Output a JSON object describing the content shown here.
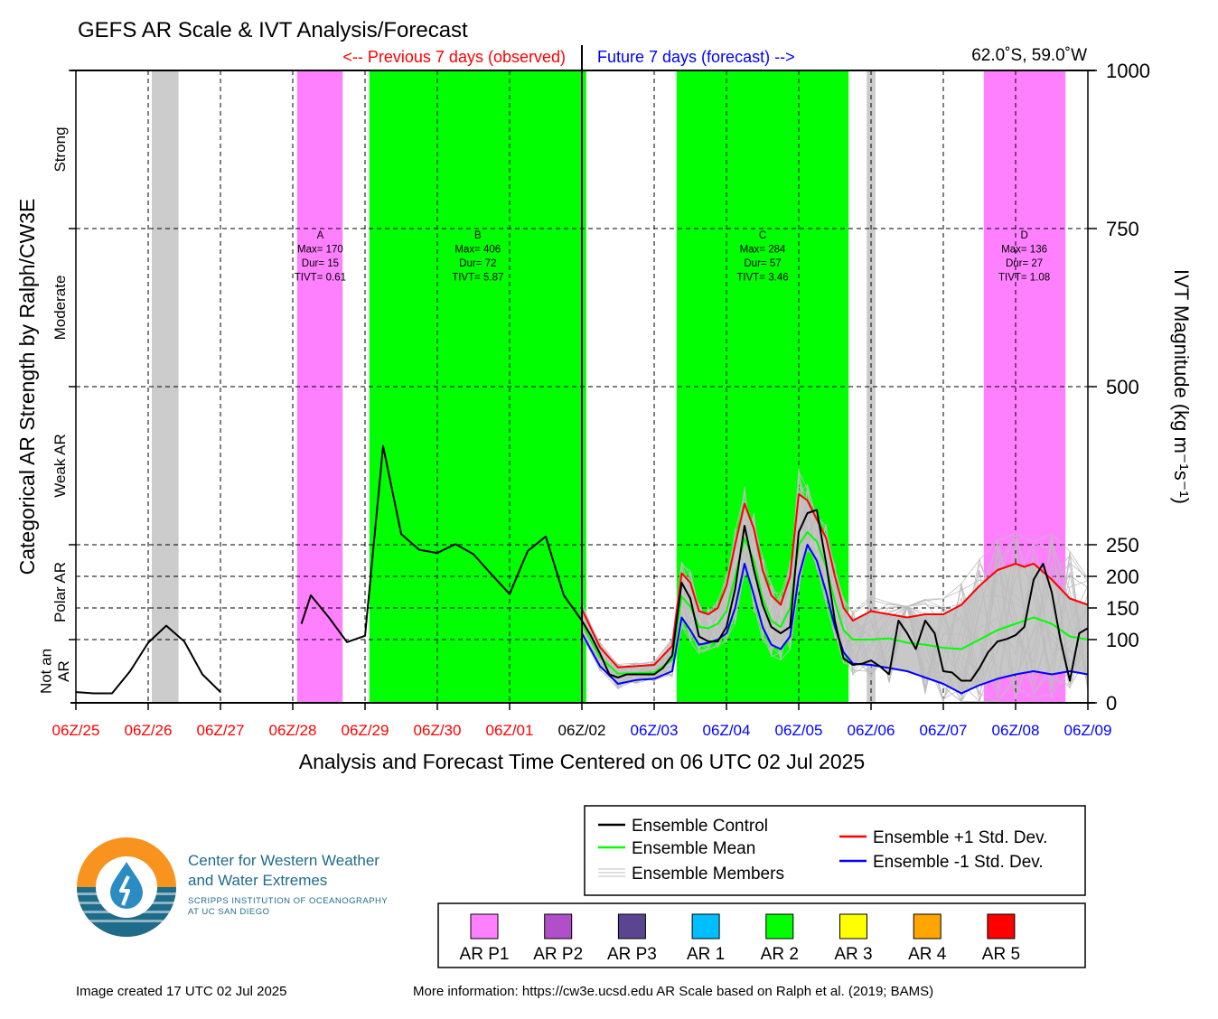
{
  "header": {
    "title": "GEFS AR Scale & IVT Analysis/Forecast",
    "previous_label": "<-- Previous 7 days (observed)",
    "future_label": "Future 7 days (forecast) -->",
    "location": "62.0˚S, 59.0˚W"
  },
  "colors": {
    "observed_red": "#ff0000",
    "forecast_blue": "#0000ff",
    "ar_p1": "#ff80ff",
    "ar_p2": "#b04fc8",
    "ar_p3": "#5a4590",
    "ar_1": "#00bfff",
    "ar_2": "#00ff00",
    "ar_3": "#ffff00",
    "ar_4": "#ffa500",
    "ar_5": "#ff0000",
    "control": "#000000",
    "mean": "#00ff00",
    "plus_std": "#ff0000",
    "minus_std": "#0000ff",
    "members": "#bdbdbd",
    "spread_fill": "#c8c8c8",
    "gap_bar": "#cccccc"
  },
  "chart_data": {
    "type": "line",
    "title": "GEFS AR Scale & IVT Analysis/Forecast",
    "xlabel": "Analysis and Forecast Time Centered on 06 UTC 02 Jul 2025",
    "ylabel_left": "Categorical AR Strength by Ralph/CW3E",
    "ylabel_right": "IVT Magnitude (kg m⁻¹s⁻¹)",
    "ylim": [
      0,
      1000
    ],
    "x_unit": "days relative to 06Z/02 Jul 2025",
    "xlim": [
      -7,
      7
    ],
    "x_ticks": [
      {
        "x": -7,
        "label": "06Z/25",
        "period": "observed"
      },
      {
        "x": -6,
        "label": "06Z/26",
        "period": "observed"
      },
      {
        "x": -5,
        "label": "06Z/27",
        "period": "observed"
      },
      {
        "x": -4,
        "label": "06Z/28",
        "period": "observed"
      },
      {
        "x": -3,
        "label": "06Z/29",
        "period": "observed"
      },
      {
        "x": -2,
        "label": "06Z/30",
        "period": "observed"
      },
      {
        "x": -1,
        "label": "06Z/01",
        "period": "observed"
      },
      {
        "x": 0,
        "label": "06Z/02",
        "period": "current"
      },
      {
        "x": 1,
        "label": "06Z/03",
        "period": "forecast"
      },
      {
        "x": 2,
        "label": "06Z/04",
        "period": "forecast"
      },
      {
        "x": 3,
        "label": "06Z/05",
        "period": "forecast"
      },
      {
        "x": 4,
        "label": "06Z/06",
        "period": "forecast"
      },
      {
        "x": 5,
        "label": "06Z/07",
        "period": "forecast"
      },
      {
        "x": 6,
        "label": "06Z/08",
        "period": "forecast"
      },
      {
        "x": 7,
        "label": "06Z/09",
        "period": "forecast"
      }
    ],
    "y_ticks_right": [
      {
        "value": 0,
        "label": "0"
      },
      {
        "value": 100,
        "label": "100"
      },
      {
        "value": 150,
        "label": "150"
      },
      {
        "value": 200,
        "label": "200"
      },
      {
        "value": 250,
        "label": "250"
      },
      {
        "value": 500,
        "label": "500"
      },
      {
        "value": 750,
        "label": "750"
      },
      {
        "value": 1000,
        "label": "1000"
      }
    ],
    "categories_left": [
      {
        "label": "Not an AR",
        "lines": [
          "Not an",
          "AR"
        ],
        "from": 0,
        "to": 100
      },
      {
        "label": "Polar AR",
        "lines": [
          "Polar AR"
        ],
        "from": 100,
        "to": 250
      },
      {
        "label": "Weak AR",
        "lines": [
          "Weak AR"
        ],
        "from": 250,
        "to": 500
      },
      {
        "label": "Moderate",
        "lines": [
          "Moderate"
        ],
        "from": 500,
        "to": 750
      },
      {
        "label": "Strong",
        "lines": [
          "Strong"
        ],
        "from": 750,
        "to": 1000
      }
    ],
    "shaded_periods": [
      {
        "start": -5.95,
        "end": -5.58,
        "category": "missing",
        "color": "#cccccc"
      },
      {
        "start": -3.94,
        "end": -3.31,
        "category": "AR P1",
        "color": "#ff80ff"
      },
      {
        "start": -2.94,
        "end": 0.06,
        "category": "AR 2",
        "color": "#00ff00"
      },
      {
        "start": 1.31,
        "end": 3.69,
        "category": "AR 2",
        "color": "#00ff00"
      },
      {
        "start": 3.94,
        "end": 4.06,
        "category": "missing",
        "color": "#cccccc"
      },
      {
        "start": 5.56,
        "end": 6.69,
        "category": "AR P1",
        "color": "#ff80ff"
      }
    ],
    "events": [
      {
        "id": "A",
        "max": "Max= 170",
        "dur": "Dur= 15",
        "tivt": "TIVT= 0.61",
        "x": -3.62
      },
      {
        "id": "B",
        "max": "Max= 406",
        "dur": "Dur= 72",
        "tivt": "TIVT= 5.87",
        "x": -1.44
      },
      {
        "id": "C",
        "max": "Max= 284",
        "dur": "Dur= 57",
        "tivt": "TIVT= 3.46",
        "x": 2.5
      },
      {
        "id": "D",
        "max": "Max= 136",
        "dur": "Dur= 27",
        "tivt": "TIVT= 1.08",
        "x": 6.12
      }
    ],
    "series": [
      {
        "name": "Ensemble Control",
        "segments": [
          [
            [
              -7,
              17
            ],
            [
              -6.75,
              15
            ],
            [
              -6.5,
              15
            ],
            [
              -6.25,
              50
            ],
            [
              -6,
              95
            ],
            [
              -5.75,
              122
            ],
            [
              -5.5,
              97
            ],
            [
              -5.25,
              45
            ],
            [
              -5,
              17
            ]
          ],
          [
            [
              -3.88,
              125
            ],
            [
              -3.75,
              170
            ],
            [
              -3.5,
              135
            ],
            [
              -3.25,
              96
            ],
            [
              -3,
              106
            ],
            [
              -2.75,
              406
            ],
            [
              -2.5,
              267
            ],
            [
              -2.25,
              242
            ],
            [
              -2,
              237
            ],
            [
              -1.75,
              251
            ],
            [
              -1.5,
              235
            ],
            [
              -1.25,
              203
            ],
            [
              -1,
              172
            ],
            [
              -0.75,
              240
            ],
            [
              -0.5,
              263
            ],
            [
              -0.25,
              170
            ],
            [
              0,
              130
            ],
            [
              0.12,
              107
            ],
            [
              0.25,
              78
            ],
            [
              0.38,
              45
            ],
            [
              0.5,
              40
            ],
            [
              0.62,
              45
            ],
            [
              0.75,
              45
            ],
            [
              0.88,
              45
            ],
            [
              1,
              45
            ],
            [
              1.12,
              55
            ],
            [
              1.25,
              75
            ],
            [
              1.38,
              190
            ],
            [
              1.5,
              165
            ],
            [
              1.62,
              105
            ],
            [
              1.75,
              97
            ],
            [
              1.88,
              97
            ],
            [
              2,
              120
            ],
            [
              2.12,
              180
            ],
            [
              2.25,
              280
            ],
            [
              2.38,
              210
            ],
            [
              2.5,
              155
            ],
            [
              2.62,
              120
            ],
            [
              2.75,
              110
            ],
            [
              2.88,
              120
            ],
            [
              3,
              270
            ],
            [
              3.12,
              300
            ],
            [
              3.25,
              305
            ],
            [
              3.38,
              220
            ],
            [
              3.5,
              130
            ],
            [
              3.62,
              70
            ],
            [
              3.75,
              60
            ],
            [
              3.88,
              62
            ],
            [
              4,
              67
            ],
            [
              4.12,
              58
            ],
            [
              4.25,
              45
            ],
            [
              4.38,
              130
            ],
            [
              4.5,
              110
            ],
            [
              4.62,
              85
            ],
            [
              4.75,
              130
            ],
            [
              4.88,
              110
            ],
            [
              5,
              50
            ],
            [
              5.12,
              48
            ],
            [
              5.25,
              35
            ],
            [
              5.38,
              35
            ],
            [
              5.5,
              55
            ],
            [
              5.62,
              80
            ],
            [
              5.75,
              97
            ],
            [
              5.88,
              101
            ],
            [
              6,
              107
            ],
            [
              6.12,
              120
            ],
            [
              6.25,
              195
            ],
            [
              6.38,
              220
            ],
            [
              6.5,
              175
            ],
            [
              6.62,
              100
            ],
            [
              6.75,
              35
            ],
            [
              6.88,
              110
            ],
            [
              7,
              118
            ]
          ]
        ]
      },
      {
        "name": "Ensemble Mean",
        "values": [
          [
            0,
            125
          ],
          [
            0.25,
            72
          ],
          [
            0.5,
            46
          ],
          [
            0.75,
            47
          ],
          [
            1,
            48
          ],
          [
            1.25,
            68
          ],
          [
            1.38,
            168
          ],
          [
            1.5,
            152
          ],
          [
            1.62,
            120
          ],
          [
            1.75,
            118
          ],
          [
            1.88,
            125
          ],
          [
            2,
            145
          ],
          [
            2.12,
            200
          ],
          [
            2.25,
            260
          ],
          [
            2.38,
            225
          ],
          [
            2.5,
            165
          ],
          [
            2.62,
            130
          ],
          [
            2.75,
            120
          ],
          [
            2.88,
            150
          ],
          [
            3,
            250
          ],
          [
            3.12,
            270
          ],
          [
            3.25,
            255
          ],
          [
            3.38,
            215
          ],
          [
            3.5,
            160
          ],
          [
            3.62,
            115
          ],
          [
            3.75,
            100
          ],
          [
            4,
            100
          ],
          [
            4.25,
            102
          ],
          [
            4.5,
            95
          ],
          [
            4.75,
            92
          ],
          [
            5,
            87
          ],
          [
            5.25,
            85
          ],
          [
            5.5,
            100
          ],
          [
            5.75,
            115
          ],
          [
            6,
            125
          ],
          [
            6.25,
            135
          ],
          [
            6.5,
            125
          ],
          [
            6.75,
            105
          ],
          [
            7,
            100
          ]
        ]
      },
      {
        "name": "Ensemble +1 Std. Dev.",
        "values": [
          [
            0,
            148
          ],
          [
            0.25,
            88
          ],
          [
            0.5,
            56
          ],
          [
            0.75,
            58
          ],
          [
            1,
            60
          ],
          [
            1.25,
            90
          ],
          [
            1.38,
            205
          ],
          [
            1.5,
            190
          ],
          [
            1.62,
            145
          ],
          [
            1.75,
            140
          ],
          [
            1.88,
            150
          ],
          [
            2,
            185
          ],
          [
            2.12,
            250
          ],
          [
            2.25,
            315
          ],
          [
            2.38,
            275
          ],
          [
            2.5,
            210
          ],
          [
            2.62,
            170
          ],
          [
            2.75,
            155
          ],
          [
            2.88,
            200
          ],
          [
            3,
            330
          ],
          [
            3.12,
            320
          ],
          [
            3.25,
            290
          ],
          [
            3.38,
            260
          ],
          [
            3.5,
            200
          ],
          [
            3.62,
            150
          ],
          [
            3.75,
            130
          ],
          [
            4,
            145
          ],
          [
            4.25,
            140
          ],
          [
            4.5,
            135
          ],
          [
            4.75,
            140
          ],
          [
            5,
            140
          ],
          [
            5.25,
            155
          ],
          [
            5.5,
            185
          ],
          [
            5.75,
            210
          ],
          [
            6,
            220
          ],
          [
            6.12,
            215
          ],
          [
            6.25,
            220
          ],
          [
            6.5,
            195
          ],
          [
            6.75,
            165
          ],
          [
            7,
            155
          ]
        ]
      },
      {
        "name": "Ensemble -1 Std. Dev.",
        "values": [
          [
            0,
            110
          ],
          [
            0.25,
            58
          ],
          [
            0.5,
            30
          ],
          [
            0.75,
            36
          ],
          [
            1,
            38
          ],
          [
            1.25,
            50
          ],
          [
            1.38,
            135
          ],
          [
            1.5,
            115
          ],
          [
            1.62,
            92
          ],
          [
            1.75,
            95
          ],
          [
            1.88,
            100
          ],
          [
            2,
            110
          ],
          [
            2.12,
            150
          ],
          [
            2.25,
            220
          ],
          [
            2.38,
            170
          ],
          [
            2.5,
            120
          ],
          [
            2.62,
            92
          ],
          [
            2.75,
            85
          ],
          [
            2.88,
            105
          ],
          [
            3,
            200
          ],
          [
            3.12,
            250
          ],
          [
            3.25,
            225
          ],
          [
            3.38,
            175
          ],
          [
            3.5,
            120
          ],
          [
            3.62,
            80
          ],
          [
            3.75,
            62
          ],
          [
            4,
            60
          ],
          [
            4.25,
            55
          ],
          [
            4.5,
            50
          ],
          [
            4.75,
            40
          ],
          [
            5,
            30
          ],
          [
            5.25,
            15
          ],
          [
            5.5,
            28
          ],
          [
            5.75,
            38
          ],
          [
            6,
            45
          ],
          [
            6.25,
            50
          ],
          [
            6.5,
            45
          ],
          [
            6.75,
            50
          ],
          [
            7,
            45
          ]
        ]
      }
    ],
    "legend": {
      "placement": "bottom-right",
      "items": [
        {
          "label": "Ensemble Control",
          "style": "control"
        },
        {
          "label": "Ensemble Mean",
          "style": "mean"
        },
        {
          "label": "Ensemble Members",
          "style": "members"
        },
        {
          "label": "Ensemble +1 Std. Dev.",
          "style": "plus_std"
        },
        {
          "label": "Ensemble -1 Std. Dev.",
          "style": "minus_std"
        }
      ]
    },
    "scale_legend": [
      {
        "label": "AR P1",
        "color": "#ff80ff"
      },
      {
        "label": "AR P2",
        "color": "#b04fc8"
      },
      {
        "label": "AR P3",
        "color": "#5a4590"
      },
      {
        "label": "AR 1",
        "color": "#00bfff"
      },
      {
        "label": "AR 2",
        "color": "#00ff00"
      },
      {
        "label": "AR 3",
        "color": "#ffff00"
      },
      {
        "label": "AR 4",
        "color": "#ffa500"
      },
      {
        "label": "AR 5",
        "color": "#ff0000"
      }
    ],
    "grid": true
  },
  "logo": {
    "name_line1": "Center for Western Weather",
    "name_line2": "and Water Extremes",
    "sub_line1": "SCRIPPS INSTITUTION OF OCEANOGRAPHY",
    "sub_line2": "AT UC SAN DIEGO"
  },
  "footer": {
    "created": "Image created 17 UTC 02 Jul 2025",
    "more_info": "More information: https://cw3e.ucsd.edu AR Scale based on Ralph et al. (2019; BAMS)"
  }
}
